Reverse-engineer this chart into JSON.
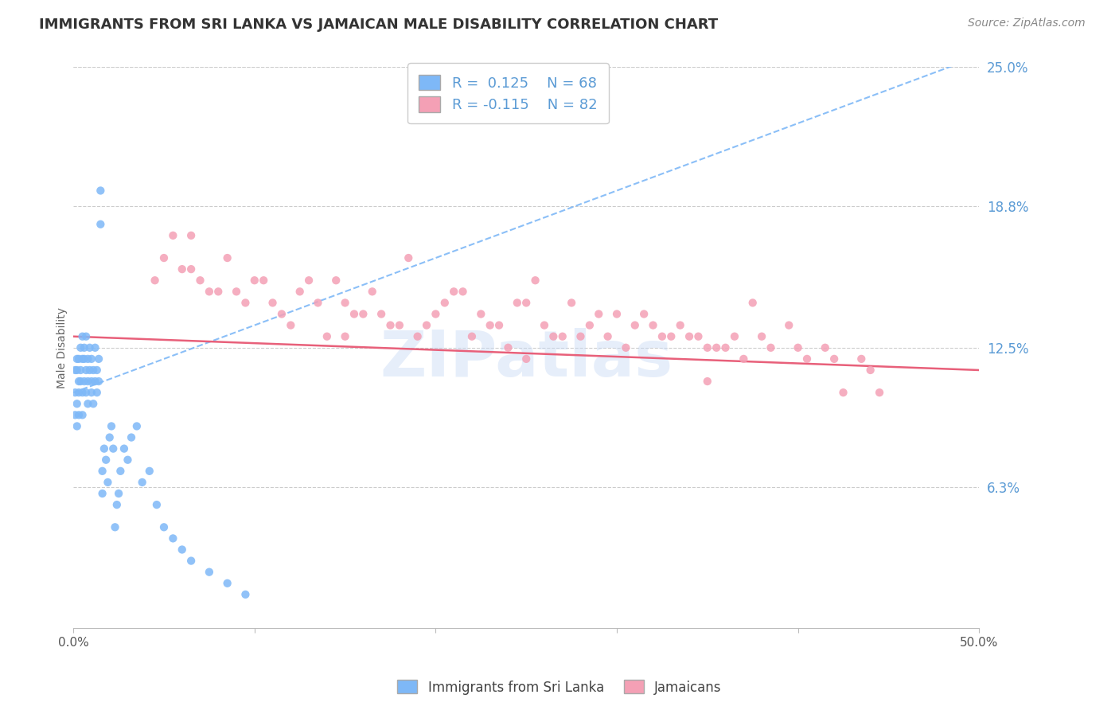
{
  "title": "IMMIGRANTS FROM SRI LANKA VS JAMAICAN MALE DISABILITY CORRELATION CHART",
  "source_text": "Source: ZipAtlas.com",
  "ylabel": "Male Disability",
  "xlim": [
    0.0,
    0.5
  ],
  "ylim": [
    0.0,
    0.25
  ],
  "ytick_labels_right": [
    "6.3%",
    "12.5%",
    "18.8%",
    "25.0%"
  ],
  "yticks_right": [
    0.063,
    0.125,
    0.188,
    0.25
  ],
  "R_sri": 0.125,
  "N_sri": 68,
  "R_jam": -0.115,
  "N_jam": 82,
  "color_sri": "#7eb8f7",
  "color_jam": "#f4a0b5",
  "trendline_sri_color": "#7eb8f7",
  "trendline_jam_color": "#e8607a",
  "legend_label_sri": "Immigrants from Sri Lanka",
  "legend_label_jam": "Jamaicans",
  "sri_lanka_x": [
    0.001,
    0.001,
    0.001,
    0.002,
    0.002,
    0.002,
    0.002,
    0.003,
    0.003,
    0.003,
    0.003,
    0.004,
    0.004,
    0.004,
    0.005,
    0.005,
    0.005,
    0.005,
    0.006,
    0.006,
    0.006,
    0.007,
    0.007,
    0.007,
    0.008,
    0.008,
    0.008,
    0.009,
    0.009,
    0.01,
    0.01,
    0.01,
    0.011,
    0.011,
    0.012,
    0.012,
    0.013,
    0.013,
    0.014,
    0.014,
    0.015,
    0.015,
    0.016,
    0.016,
    0.017,
    0.018,
    0.019,
    0.02,
    0.021,
    0.022,
    0.023,
    0.024,
    0.025,
    0.026,
    0.028,
    0.03,
    0.032,
    0.035,
    0.038,
    0.042,
    0.046,
    0.05,
    0.055,
    0.06,
    0.065,
    0.075,
    0.085,
    0.095
  ],
  "sri_lanka_y": [
    0.105,
    0.095,
    0.115,
    0.12,
    0.1,
    0.09,
    0.115,
    0.11,
    0.105,
    0.12,
    0.095,
    0.115,
    0.125,
    0.11,
    0.13,
    0.105,
    0.12,
    0.095,
    0.125,
    0.11,
    0.12,
    0.115,
    0.105,
    0.13,
    0.11,
    0.12,
    0.1,
    0.115,
    0.125,
    0.11,
    0.105,
    0.12,
    0.1,
    0.115,
    0.11,
    0.125,
    0.105,
    0.115,
    0.11,
    0.12,
    0.195,
    0.18,
    0.06,
    0.07,
    0.08,
    0.075,
    0.065,
    0.085,
    0.09,
    0.08,
    0.045,
    0.055,
    0.06,
    0.07,
    0.08,
    0.075,
    0.085,
    0.09,
    0.065,
    0.07,
    0.055,
    0.045,
    0.04,
    0.035,
    0.03,
    0.025,
    0.02,
    0.015
  ],
  "jamaican_x": [
    0.045,
    0.055,
    0.065,
    0.075,
    0.085,
    0.095,
    0.105,
    0.115,
    0.125,
    0.135,
    0.145,
    0.155,
    0.165,
    0.175,
    0.185,
    0.195,
    0.205,
    0.215,
    0.225,
    0.235,
    0.245,
    0.255,
    0.265,
    0.275,
    0.285,
    0.295,
    0.305,
    0.315,
    0.325,
    0.335,
    0.345,
    0.355,
    0.365,
    0.375,
    0.385,
    0.395,
    0.405,
    0.415,
    0.425,
    0.435,
    0.05,
    0.07,
    0.09,
    0.11,
    0.13,
    0.15,
    0.17,
    0.19,
    0.21,
    0.23,
    0.25,
    0.27,
    0.29,
    0.31,
    0.33,
    0.35,
    0.37,
    0.06,
    0.08,
    0.1,
    0.12,
    0.14,
    0.16,
    0.18,
    0.2,
    0.22,
    0.24,
    0.26,
    0.28,
    0.3,
    0.32,
    0.34,
    0.36,
    0.38,
    0.4,
    0.42,
    0.44,
    0.065,
    0.15,
    0.25,
    0.35,
    0.445
  ],
  "jamaican_y": [
    0.155,
    0.175,
    0.16,
    0.15,
    0.165,
    0.145,
    0.155,
    0.14,
    0.15,
    0.145,
    0.155,
    0.14,
    0.15,
    0.135,
    0.165,
    0.135,
    0.145,
    0.15,
    0.14,
    0.135,
    0.145,
    0.155,
    0.13,
    0.145,
    0.135,
    0.13,
    0.125,
    0.14,
    0.13,
    0.135,
    0.13,
    0.125,
    0.13,
    0.145,
    0.125,
    0.135,
    0.12,
    0.125,
    0.105,
    0.12,
    0.165,
    0.155,
    0.15,
    0.145,
    0.155,
    0.145,
    0.14,
    0.13,
    0.15,
    0.135,
    0.145,
    0.13,
    0.14,
    0.135,
    0.13,
    0.125,
    0.12,
    0.16,
    0.15,
    0.155,
    0.135,
    0.13,
    0.14,
    0.135,
    0.14,
    0.13,
    0.125,
    0.135,
    0.13,
    0.14,
    0.135,
    0.13,
    0.125,
    0.13,
    0.125,
    0.12,
    0.115,
    0.175,
    0.13,
    0.12,
    0.11,
    0.105
  ]
}
